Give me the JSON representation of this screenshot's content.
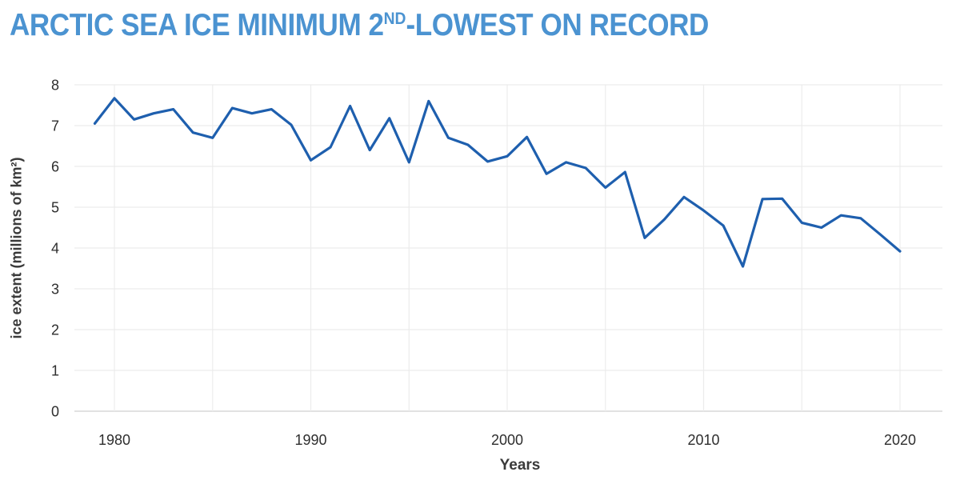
{
  "header": {
    "title_prefix": "ARCTIC SEA ICE MINIMUM 2",
    "title_superscript": "ND",
    "title_suffix": "-LOWEST ON RECORD"
  },
  "chart_data": {
    "type": "line",
    "title": "ARCTIC SEA ICE MINIMUM 2ND-LOWEST ON RECORD",
    "xlabel": "Years",
    "ylabel": "ice extent (millions of km²)",
    "x": [
      1979,
      1980,
      1981,
      1982,
      1983,
      1984,
      1985,
      1986,
      1987,
      1988,
      1989,
      1990,
      1991,
      1992,
      1993,
      1994,
      1995,
      1996,
      1997,
      1998,
      1999,
      2000,
      2001,
      2002,
      2003,
      2004,
      2005,
      2006,
      2007,
      2008,
      2009,
      2010,
      2011,
      2012,
      2013,
      2014,
      2015,
      2016,
      2017,
      2018,
      2019,
      2020
    ],
    "values": [
      7.05,
      7.67,
      7.15,
      7.3,
      7.4,
      6.83,
      6.7,
      7.43,
      7.3,
      7.4,
      7.02,
      6.15,
      6.47,
      7.48,
      6.4,
      7.18,
      6.1,
      7.6,
      6.7,
      6.53,
      6.12,
      6.25,
      6.72,
      5.82,
      6.1,
      5.96,
      5.48,
      5.86,
      4.25,
      4.7,
      5.25,
      4.92,
      4.55,
      3.55,
      5.2,
      5.21,
      4.62,
      4.5,
      4.8,
      4.73,
      4.33,
      3.92
    ],
    "xlim": [
      1978,
      2022.2
    ],
    "ylim": [
      0,
      8
    ],
    "yticks": [
      0,
      1,
      2,
      3,
      4,
      5,
      6,
      7,
      8
    ],
    "xtick_labels": [
      1980,
      1990,
      2000,
      2010,
      2020
    ],
    "x_gridlines": [
      1980,
      1985,
      1990,
      1995,
      2000,
      2005,
      2010,
      2015,
      2020
    ],
    "grid": true,
    "legend": false,
    "colors": {
      "line": "#1e5fae",
      "title": "#4b93d1",
      "grid": "#ececec",
      "zero_line": "#e2e2e2",
      "tick_text": "#2e2e2e",
      "axis_title_text": "#3a3a3a"
    }
  }
}
